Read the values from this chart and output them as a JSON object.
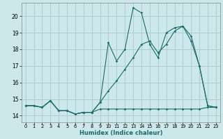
{
  "xlabel": "Humidex (Indice chaleur)",
  "bg_color": "#cce8ea",
  "grid_color": "#aacfd2",
  "line_color": "#1a6b6b",
  "xlim": [
    -0.5,
    23.5
  ],
  "ylim": [
    13.6,
    20.8
  ],
  "xticks": [
    0,
    1,
    2,
    3,
    4,
    5,
    6,
    7,
    8,
    9,
    10,
    11,
    12,
    13,
    14,
    15,
    16,
    17,
    18,
    19,
    20,
    21,
    22,
    23
  ],
  "yticks": [
    14,
    15,
    16,
    17,
    18,
    19,
    20
  ],
  "series_flat_x": [
    0,
    1,
    2,
    3,
    4,
    5,
    6,
    7,
    8,
    9,
    10,
    11,
    12,
    13,
    14,
    15,
    16,
    17,
    18,
    19,
    20,
    21,
    22,
    23
  ],
  "series_flat_y": [
    14.6,
    14.6,
    14.5,
    14.9,
    14.3,
    14.3,
    14.1,
    14.2,
    14.2,
    14.4,
    14.4,
    14.4,
    14.4,
    14.4,
    14.4,
    14.4,
    14.4,
    14.4,
    14.4,
    14.4,
    14.4,
    14.4,
    14.5,
    14.5
  ],
  "series_zigzag_x": [
    0,
    1,
    2,
    3,
    4,
    5,
    6,
    7,
    8,
    9,
    10,
    11,
    12,
    13,
    14,
    15,
    16,
    17,
    18,
    19,
    20,
    21,
    22,
    23
  ],
  "series_zigzag_y": [
    14.6,
    14.6,
    14.5,
    14.9,
    14.3,
    14.3,
    14.1,
    14.2,
    14.2,
    14.8,
    18.4,
    17.3,
    18.0,
    20.5,
    20.2,
    18.3,
    17.5,
    19.0,
    19.3,
    19.4,
    18.5,
    17.0,
    14.6,
    14.5
  ],
  "series_trend_x": [
    0,
    1,
    2,
    3,
    4,
    5,
    6,
    7,
    8,
    9,
    10,
    11,
    12,
    13,
    14,
    15,
    16,
    17,
    18,
    19,
    20,
    21,
    22,
    23
  ],
  "series_trend_y": [
    14.6,
    14.6,
    14.5,
    14.9,
    14.3,
    14.3,
    14.1,
    14.2,
    14.2,
    14.8,
    15.5,
    16.1,
    16.8,
    17.5,
    18.3,
    18.5,
    17.8,
    18.3,
    19.1,
    19.4,
    18.8,
    17.0,
    14.6,
    14.5
  ]
}
